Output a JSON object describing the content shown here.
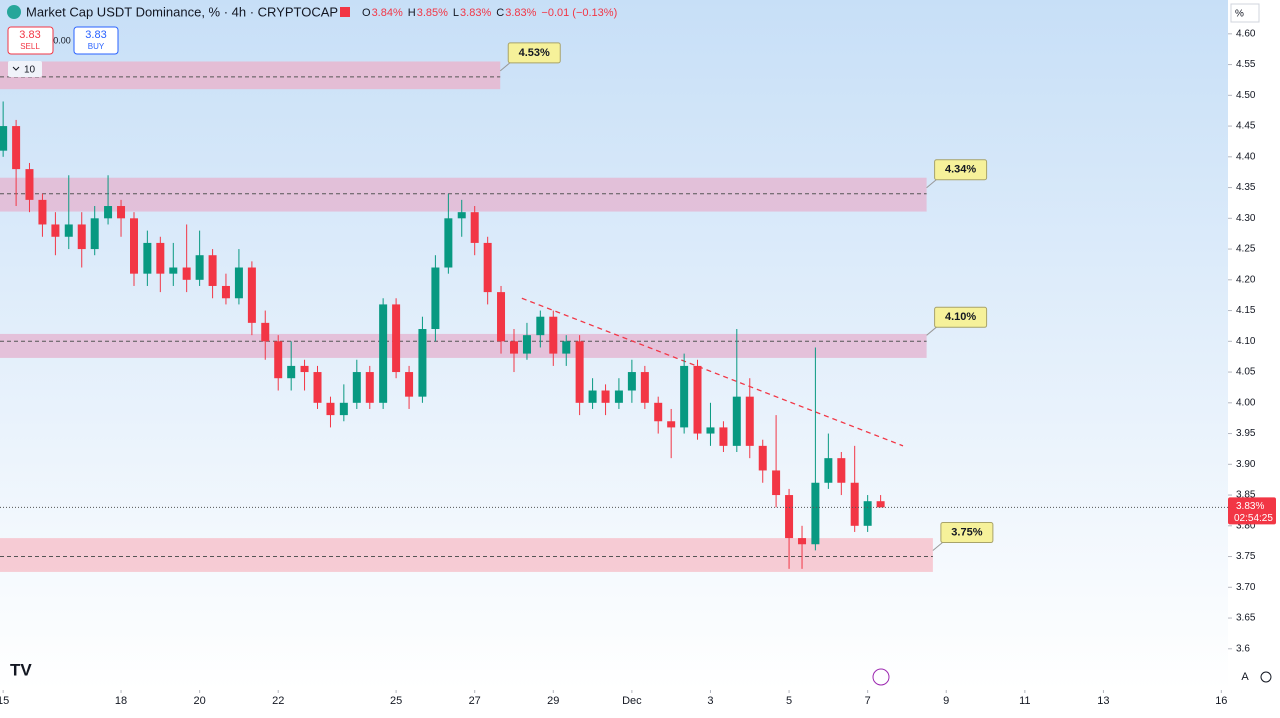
{
  "chart_data": {
    "type": "candlestick",
    "title": "Market Cap USDT Dominance, % · 4h · CRYPTOCAP",
    "legend": [
      {
        "key": "O",
        "value": "3.84%"
      },
      {
        "key": "H",
        "value": "3.85%"
      },
      {
        "key": "L",
        "value": "3.83%"
      },
      {
        "key": "C",
        "value": "3.83%"
      }
    ],
    "change": "−0.01 (−0.13%)",
    "up_color": "#089981",
    "down_color": "#f23645",
    "x": [
      0,
      0.33,
      0.67,
      1,
      1.33,
      1.67,
      2,
      2.33,
      2.67,
      3,
      3.33,
      3.67,
      4,
      4.33,
      4.67,
      5,
      5.33,
      5.67,
      6,
      6.33,
      6.67,
      7,
      7.33,
      7.67,
      8,
      8.33,
      8.67,
      9,
      9.33,
      9.67,
      10,
      10.33,
      10.67,
      11,
      11.33,
      11.67,
      12,
      12.33,
      12.67,
      13,
      13.33,
      13.67,
      14,
      14.33,
      14.67,
      15,
      15.33,
      15.67,
      16,
      16.33,
      16.67,
      17,
      17.33,
      17.67,
      18,
      18.33,
      18.67,
      19,
      19.33,
      19.67,
      20,
      20.33,
      20.67,
      21,
      21.33,
      21.67,
      22,
      22.33
    ],
    "open": [
      4.41,
      4.45,
      4.38,
      4.33,
      4.29,
      4.27,
      4.29,
      4.25,
      4.3,
      4.32,
      4.3,
      4.21,
      4.26,
      4.21,
      4.22,
      4.2,
      4.24,
      4.19,
      4.17,
      4.22,
      4.13,
      4.1,
      4.04,
      4.06,
      4.05,
      4.0,
      3.98,
      4.0,
      4.05,
      4.0,
      4.16,
      4.05,
      4.01,
      4.12,
      4.22,
      4.3,
      4.31,
      4.26,
      4.18,
      4.1,
      4.08,
      4.11,
      4.14,
      4.08,
      4.1,
      4.0,
      4.02,
      4.0,
      4.02,
      4.05,
      4.0,
      3.97,
      3.96,
      4.06,
      3.95,
      3.96,
      3.93,
      4.01,
      3.93,
      3.89,
      3.85,
      3.78,
      3.77,
      3.87,
      3.91,
      3.87,
      3.8,
      3.84
    ],
    "high": [
      4.49,
      4.46,
      4.39,
      4.34,
      4.31,
      4.37,
      4.31,
      4.32,
      4.37,
      4.33,
      4.31,
      4.28,
      4.27,
      4.26,
      4.29,
      4.28,
      4.25,
      4.21,
      4.25,
      4.23,
      4.15,
      4.11,
      4.1,
      4.07,
      4.06,
      4.01,
      4.03,
      4.07,
      4.06,
      4.17,
      4.17,
      4.06,
      4.14,
      4.24,
      4.34,
      4.33,
      4.32,
      4.27,
      4.19,
      4.12,
      4.13,
      4.15,
      4.15,
      4.11,
      4.11,
      4.04,
      4.03,
      4.04,
      4.07,
      4.06,
      4.01,
      3.99,
      4.08,
      4.07,
      4.0,
      3.97,
      4.12,
      4.04,
      3.94,
      3.98,
      3.86,
      3.8,
      4.09,
      3.95,
      3.92,
      3.93,
      3.85,
      3.85
    ],
    "low": [
      4.4,
      4.32,
      4.31,
      4.27,
      4.24,
      4.25,
      4.22,
      4.24,
      4.29,
      4.27,
      4.19,
      4.19,
      4.18,
      4.19,
      4.18,
      4.19,
      4.17,
      4.16,
      4.16,
      4.11,
      4.07,
      4.02,
      4.02,
      4.02,
      3.99,
      3.96,
      3.97,
      3.99,
      3.99,
      3.99,
      4.04,
      3.99,
      4.0,
      4.1,
      4.21,
      4.27,
      4.24,
      4.16,
      4.08,
      4.05,
      4.07,
      4.09,
      4.06,
      4.06,
      3.98,
      3.99,
      3.98,
      3.99,
      4.0,
      3.99,
      3.95,
      3.91,
      3.95,
      3.94,
      3.93,
      3.92,
      3.92,
      3.91,
      3.87,
      3.83,
      3.73,
      3.73,
      3.76,
      3.86,
      3.85,
      3.79,
      3.79,
      3.83
    ],
    "close": [
      4.45,
      4.38,
      4.33,
      4.29,
      4.27,
      4.29,
      4.25,
      4.3,
      4.32,
      4.3,
      4.21,
      4.26,
      4.21,
      4.22,
      4.2,
      4.24,
      4.19,
      4.17,
      4.22,
      4.13,
      4.1,
      4.04,
      4.06,
      4.05,
      4.0,
      3.98,
      4.0,
      4.05,
      4.0,
      4.16,
      4.05,
      4.01,
      4.12,
      4.22,
      4.3,
      4.31,
      4.26,
      4.18,
      4.1,
      4.08,
      4.11,
      4.14,
      4.08,
      4.1,
      4.0,
      4.02,
      4.0,
      4.02,
      4.05,
      4.0,
      3.97,
      3.96,
      4.06,
      3.95,
      3.96,
      3.93,
      4.01,
      3.93,
      3.89,
      3.85,
      3.78,
      3.77,
      3.87,
      3.91,
      3.87,
      3.8,
      3.84,
      3.83
    ],
    "zones": [
      {
        "label": "4.53%",
        "level": 4.53,
        "top": 4.555,
        "bottom": 4.51,
        "end": 12.65,
        "color": "#e7b6cf"
      },
      {
        "label": "4.34%",
        "level": 4.34,
        "top": 4.366,
        "bottom": 4.311,
        "end": 23.5,
        "color": "#e4b8d3"
      },
      {
        "label": "4.10%",
        "level": 4.1,
        "top": 4.112,
        "bottom": 4.073,
        "end": 23.5,
        "color": "#e4b8d3"
      },
      {
        "label": "3.75%",
        "level": 3.75,
        "top": 3.78,
        "bottom": 3.725,
        "end": 23.66,
        "color": "#f6c3cc"
      }
    ],
    "trendline": {
      "x": [
        13.2,
        22.9
      ],
      "y": [
        4.17,
        3.93
      ],
      "color": "#f23645"
    },
    "last_price": {
      "value": 3.83,
      "label": "3.83%",
      "countdown": "02:54:25"
    },
    "ylim": [
      3.533,
      4.655
    ],
    "yticks": [
      3.6,
      {
        "value": 3.65,
        "label": "3.65"
      },
      {
        "value": 3.7,
        "label": "3.70"
      },
      3.75,
      {
        "value": 3.8,
        "label": "3.80"
      },
      3.85,
      {
        "value": 3.9,
        "label": "3.90"
      },
      3.95,
      {
        "value": 4.0,
        "label": "4.00"
      },
      4.05,
      {
        "value": 4.1,
        "label": "4.10"
      },
      4.15,
      {
        "value": 4.2,
        "label": "4.20"
      },
      4.25,
      {
        "value": 4.3,
        "label": "4.30"
      },
      4.35,
      {
        "value": 4.4,
        "label": "4.40"
      },
      4.45,
      {
        "value": 4.5,
        "label": "4.50"
      },
      4.55,
      {
        "value": 4.6,
        "label": "4.60"
      }
    ],
    "xlim": [
      -0.08,
      31.17
    ],
    "xticks": [
      {
        "value": 0,
        "label": "15"
      },
      {
        "value": 3,
        "label": "18"
      },
      {
        "value": 5,
        "label": "20"
      },
      {
        "value": 7,
        "label": "22"
      },
      {
        "value": 10,
        "label": "25"
      },
      {
        "value": 12,
        "label": "27"
      },
      {
        "value": 14,
        "label": "29"
      },
      {
        "value": 16,
        "label": "Dec"
      },
      {
        "value": 18,
        "label": "3"
      },
      {
        "value": 20,
        "label": "5"
      },
      {
        "value": 22,
        "label": "7"
      },
      {
        "value": 24,
        "label": "9"
      },
      {
        "value": 26,
        "label": "11"
      },
      {
        "value": 28,
        "label": "13"
      },
      {
        "value": 31,
        "label": "16"
      }
    ]
  },
  "toolbar": {
    "sell_price": "3.83",
    "sell": "SELL",
    "spread": "0.00",
    "buy_price": "3.83",
    "buy": "BUY",
    "collapse_count": "10",
    "unit": "%",
    "auto": "A"
  }
}
